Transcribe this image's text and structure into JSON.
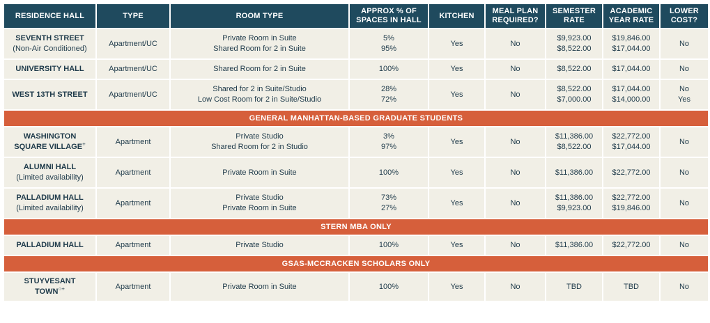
{
  "headers": {
    "residence_hall": "RESIDENCE HALL",
    "type": "TYPE",
    "room_type": "ROOM TYPE",
    "approx_pct_1": "APPROX % OF",
    "approx_pct_2": "SPACES IN HALL",
    "kitchen": "KITCHEN",
    "meal_plan_1": "MEAL PLAN",
    "meal_plan_2": "REQUIRED?",
    "semester_rate_1": "SEMESTER",
    "semester_rate_2": "RATE",
    "academic_rate_1": "ACADEMIC",
    "academic_rate_2": "YEAR RATE",
    "lower_cost_1": "LOWER",
    "lower_cost_2": "COST?"
  },
  "rows": {
    "seventh": {
      "hall": "SEVENTH STREET",
      "sub": "(Non-Air Conditioned)",
      "type": "Apartment/UC",
      "rooms": [
        "Private Room in Suite",
        "Shared Room for 2 in Suite"
      ],
      "pct": [
        "5%",
        "95%"
      ],
      "kitchen": "Yes",
      "meal": "No",
      "semester": [
        "$9,923.00",
        "$8,522.00"
      ],
      "academic": [
        "$19,846.00",
        "$17,044.00"
      ],
      "lower": [
        "No"
      ]
    },
    "university": {
      "hall": "UNIVERSITY HALL",
      "type": "Apartment/UC",
      "rooms": [
        "Shared Room for 2 in Suite"
      ],
      "pct": [
        "100%"
      ],
      "kitchen": "Yes",
      "meal": "No",
      "semester": [
        "$8,522.00"
      ],
      "academic": [
        "$17,044.00"
      ],
      "lower": [
        "No"
      ]
    },
    "west13": {
      "hall": "WEST 13TH STREET",
      "type": "Apartment/UC",
      "rooms": [
        "Shared for 2 in Suite/Studio",
        "Low Cost Room for 2 in Suite/Studio"
      ],
      "pct": [
        "28%",
        "72%"
      ],
      "kitchen": "Yes",
      "meal": "No",
      "semester": [
        "$8,522.00",
        "$7,000.00"
      ],
      "academic": [
        "$17,044.00",
        "$14,000.00"
      ],
      "lower": [
        "No",
        "Yes"
      ]
    },
    "wsv": {
      "hall_1": "WASHINGTON",
      "hall_2": "SQUARE VILLAGE",
      "mark": "+",
      "type": "Apartment",
      "rooms": [
        "Private Studio",
        "Shared Room for 2 in Studio"
      ],
      "pct": [
        "3%",
        "97%"
      ],
      "kitchen": "Yes",
      "meal": "No",
      "semester": [
        "$11,386.00",
        "$8,522.00"
      ],
      "academic": [
        "$22,772.00",
        "$17,044.00"
      ],
      "lower": [
        "No"
      ]
    },
    "alumni": {
      "hall": "ALUMNI HALL",
      "sub": "(Limited availability)",
      "type": "Apartment",
      "rooms": [
        "Private Room in Suite"
      ],
      "pct": [
        "100%"
      ],
      "kitchen": "Yes",
      "meal": "No",
      "semester": [
        "$11,386.00"
      ],
      "academic": [
        "$22,772.00"
      ],
      "lower": [
        "No"
      ]
    },
    "palladium": {
      "hall": "PALLADIUM HALL",
      "sub": "(Limited availability)",
      "type": "Apartment",
      "rooms": [
        "Private Studio",
        "Private Room in Suite"
      ],
      "pct": [
        "73%",
        "27%"
      ],
      "kitchen": "Yes",
      "meal": "No",
      "semester": [
        "$11,386.00",
        "$9,923.00"
      ],
      "academic": [
        "$22,772.00",
        "$19,846.00"
      ],
      "lower": [
        "No"
      ]
    },
    "palladium_mba": {
      "hall": "PALLADIUM HALL",
      "type": "Apartment",
      "rooms": [
        "Private Studio"
      ],
      "pct": [
        "100%"
      ],
      "kitchen": "Yes",
      "meal": "No",
      "semester": [
        "$11,386.00"
      ],
      "academic": [
        "$22,772.00"
      ],
      "lower": [
        "No"
      ]
    },
    "stuyvesant": {
      "hall_1": "STUYVESANT",
      "hall_2": "TOWN",
      "mark": "○+",
      "type": "Apartment",
      "rooms": [
        "Private Room in Suite"
      ],
      "pct": [
        "100%"
      ],
      "kitchen": "Yes",
      "meal": "No",
      "semester": [
        "TBD"
      ],
      "academic": [
        "TBD"
      ],
      "lower": [
        "No"
      ]
    }
  },
  "sections": {
    "general": "GENERAL MANHATTAN-BASED GRADUATE STUDENTS",
    "stern": "STERN MBA ONLY",
    "gsas": "GSAS-MCCRACKEN SCHOLARS ONLY"
  },
  "colors": {
    "header_bg": "#1f4a5e",
    "section_bg": "#d65f3b",
    "cell_bg": "#f1efe6",
    "text": "#1e3a4a"
  }
}
